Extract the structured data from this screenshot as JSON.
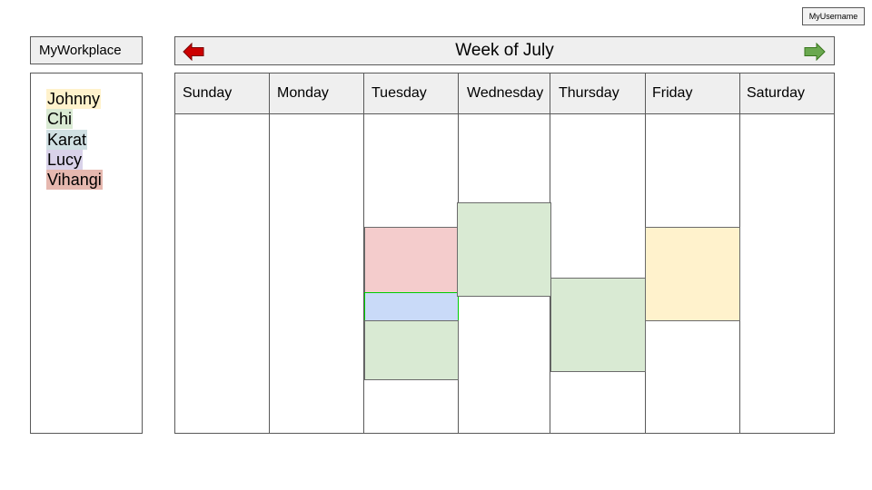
{
  "header": {
    "username": "MyUsername",
    "brand": "MyWorkplace",
    "week_title": "Week of July"
  },
  "navigation": {
    "prev_icon": "left-arrow-icon",
    "next_icon": "right-arrow-icon",
    "prev_color": "#cc0000",
    "next_color": "#6aa84f"
  },
  "sidebar": {
    "users": [
      {
        "name": "Johnny",
        "color": "#fff2cc"
      },
      {
        "name": "Chi",
        "color": "#d9ead3"
      },
      {
        "name": "Karat",
        "color": "#d0e0e3"
      },
      {
        "name": "Lucy",
        "color": "#d9d2e9"
      },
      {
        "name": "Vihangi",
        "color": "#e6b8af"
      }
    ]
  },
  "calendar": {
    "days": [
      "Sunday",
      "Monday",
      "Tuesday",
      "Wednesday",
      "Thursday",
      "Friday",
      "Saturday"
    ],
    "events": [
      {
        "day": "Tuesday",
        "color": "#f4cccc"
      },
      {
        "day": "Tuesday",
        "color": "#c9daf8",
        "border": "#00cc00"
      },
      {
        "day": "Tuesday",
        "color": "#d9ead3"
      },
      {
        "day": "Wednesday",
        "color": "#d9ead3"
      },
      {
        "day": "Thursday",
        "color": "#d9ead3"
      },
      {
        "day": "Friday",
        "color": "#fff2cc"
      }
    ]
  }
}
